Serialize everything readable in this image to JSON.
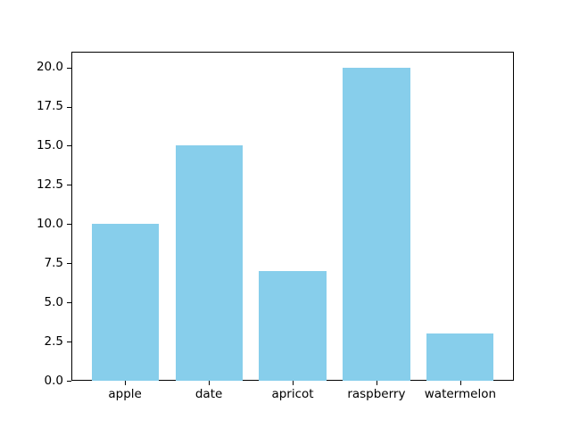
{
  "chart_data": {
    "type": "bar",
    "categories": [
      "apple",
      "date",
      "apricot",
      "raspberry",
      "watermelon"
    ],
    "values": [
      10,
      15,
      7,
      20,
      3
    ],
    "title": "",
    "xlabel": "",
    "ylabel": "",
    "ylim": [
      0,
      21
    ],
    "yticks": [
      0.0,
      2.5,
      5.0,
      7.5,
      10.0,
      12.5,
      15.0,
      17.5,
      20.0
    ],
    "ytick_labels": [
      "0.0",
      "2.5",
      "5.0",
      "7.5",
      "10.0",
      "12.5",
      "15.0",
      "17.5",
      "20.0"
    ],
    "bar_width_fraction": 0.8,
    "grid": false,
    "legend": null,
    "colors": {
      "bar": "#87CEEB",
      "axis": "#000000",
      "background": "#ffffff",
      "text": "#000000"
    }
  }
}
